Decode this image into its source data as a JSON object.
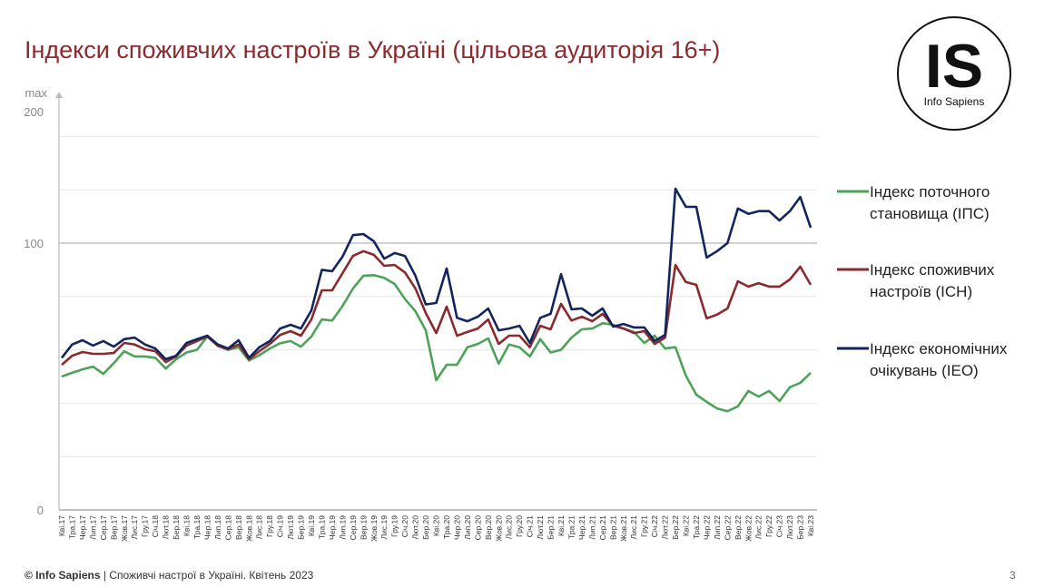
{
  "chart_data": {
    "type": "line",
    "title": "Індекси споживчих настроїв в Україні (цільова аудиторія 16+)",
    "categories": [
      "Кві.17",
      "Тра.17",
      "Чер.17",
      "Лип.17",
      "Сер.17",
      "Вер.17",
      "Жов.17",
      "Лис.17",
      "Гру.17",
      "Січ.18",
      "Лют.18",
      "Бер.18",
      "Кві.18",
      "Тра.18",
      "Чер.18",
      "Лип.18",
      "Сер.18",
      "Вер.18",
      "Жов.18",
      "Лис.18",
      "Гру.18",
      "Січ.19",
      "Лют.19",
      "Бер.19",
      "Кві.19",
      "Тра.19",
      "Чер.19",
      "Лип.19",
      "Сер.19",
      "Вер.19",
      "Жов.19",
      "Лис.19",
      "Гру.19",
      "Січ.20",
      "Лют.20",
      "Бер.20",
      "Кві.20",
      "Тра.20",
      "Чер.20",
      "Лип.20",
      "Сер.20",
      "Вер.20",
      "Жов.20",
      "Лис.20",
      "Гру.20",
      "Січ.21",
      "Лют.21",
      "Бер.21",
      "Кві.21",
      "Тра.21",
      "Чер.21",
      "Лип.21",
      "Сер.21",
      "Вер.21",
      "Жов.21",
      "Лис.21",
      "Гру.21",
      "Січ.22",
      "Лют.22",
      "Бер.22",
      "Кві.22",
      "Тра.22",
      "Чер.22",
      "Лип.22",
      "Сер.22",
      "Вер.22",
      "Жов.22",
      "Лис.22",
      "Гру.22",
      "Січ.23",
      "Лют.23",
      "Бер.23",
      "Кві.23"
    ],
    "series": [
      {
        "name": "Індекс поточного становища (ІПС)",
        "color": "#4ea25a",
        "values": [
          50,
          51.4,
          52.7,
          53.7,
          51,
          55,
          59.5,
          57.5,
          57.5,
          57,
          53,
          56.5,
          59,
          60,
          65,
          61.5,
          60,
          61,
          56,
          58,
          60.5,
          62.5,
          63.3,
          61.2,
          65,
          71.4,
          71,
          76.5,
          83,
          87.8,
          88,
          87,
          84.7,
          79,
          74.5,
          67.3,
          48.6,
          54.4,
          54.4,
          61,
          62.2,
          64.3,
          54.8,
          62,
          61,
          57.5,
          64,
          59,
          60,
          64.6,
          67.7,
          68,
          70,
          69.4,
          68,
          66.7,
          62.6,
          65.3,
          60.5,
          61,
          50.3,
          43.2,
          40.5,
          38,
          37,
          38.8,
          44.6,
          42.5,
          44.6,
          40.8,
          46,
          47.6,
          51.4
        ]
      },
      {
        "name": "Індекс споживчих настроїв (ІСН)",
        "color": "#8b2a2e",
        "values": [
          54.4,
          57.8,
          59.2,
          58.5,
          58.5,
          58.8,
          62.6,
          62,
          60.2,
          59.5,
          55.4,
          57.5,
          61.6,
          63.3,
          65,
          61.5,
          60.2,
          62,
          56.5,
          59.5,
          62.2,
          65.6,
          67,
          65.3,
          71.4,
          82.3,
          82.3,
          88.8,
          95.2,
          97,
          95.6,
          91.5,
          91.8,
          89,
          83,
          73.8,
          66.3,
          76.2,
          65.3,
          66.7,
          68,
          71.4,
          62.2,
          65.3,
          65.3,
          61,
          69,
          67.7,
          77.2,
          71,
          72.4,
          70.7,
          73.5,
          69,
          68,
          66.3,
          67,
          62.2,
          64.6,
          91.8,
          85.4,
          84.4,
          71.8,
          73.2,
          75.5,
          85.7,
          83.7,
          85,
          83.7,
          83.7,
          86.4,
          91.2,
          84.4
        ]
      },
      {
        "name": "Індекс економічних очікувань (ІЕО)",
        "color": "#13255e",
        "values": [
          57,
          62,
          63.6,
          61.6,
          63.3,
          61.2,
          64,
          64.6,
          62,
          60.5,
          56.5,
          57.8,
          62.6,
          64,
          65.3,
          62,
          60.5,
          63.6,
          57,
          61,
          63.3,
          68,
          69.4,
          68,
          74.8,
          90,
          89.5,
          95,
          103,
          103.4,
          100.7,
          94.2,
          96.3,
          95.2,
          87.8,
          77,
          77.6,
          90.5,
          72,
          70.7,
          72.4,
          75.5,
          67.3,
          68,
          69,
          62.6,
          72,
          73.5,
          88.4,
          75.2,
          75.5,
          72.8,
          75.5,
          68.7,
          69.7,
          68.4,
          68.4,
          63.3,
          65.6,
          120.4,
          113.6,
          113.6,
          94.6,
          97,
          100,
          113,
          111,
          112,
          112,
          108.5,
          112,
          117.3,
          105.8
        ]
      }
    ],
    "ylim": [
      0,
      150
    ],
    "yticks": [
      0,
      100
    ],
    "minor_gridlines": [
      20,
      40,
      60,
      80,
      120,
      140
    ],
    "axis_top_label": "max",
    "axis_top_value": "200",
    "grid": true
  },
  "logo": {
    "mark": "IS",
    "name": "Info Sapiens"
  },
  "footer": {
    "source": "© Info Sapiens",
    "text": "| Споживчі настрої в Україні. Квітень 2023",
    "page": "3"
  }
}
